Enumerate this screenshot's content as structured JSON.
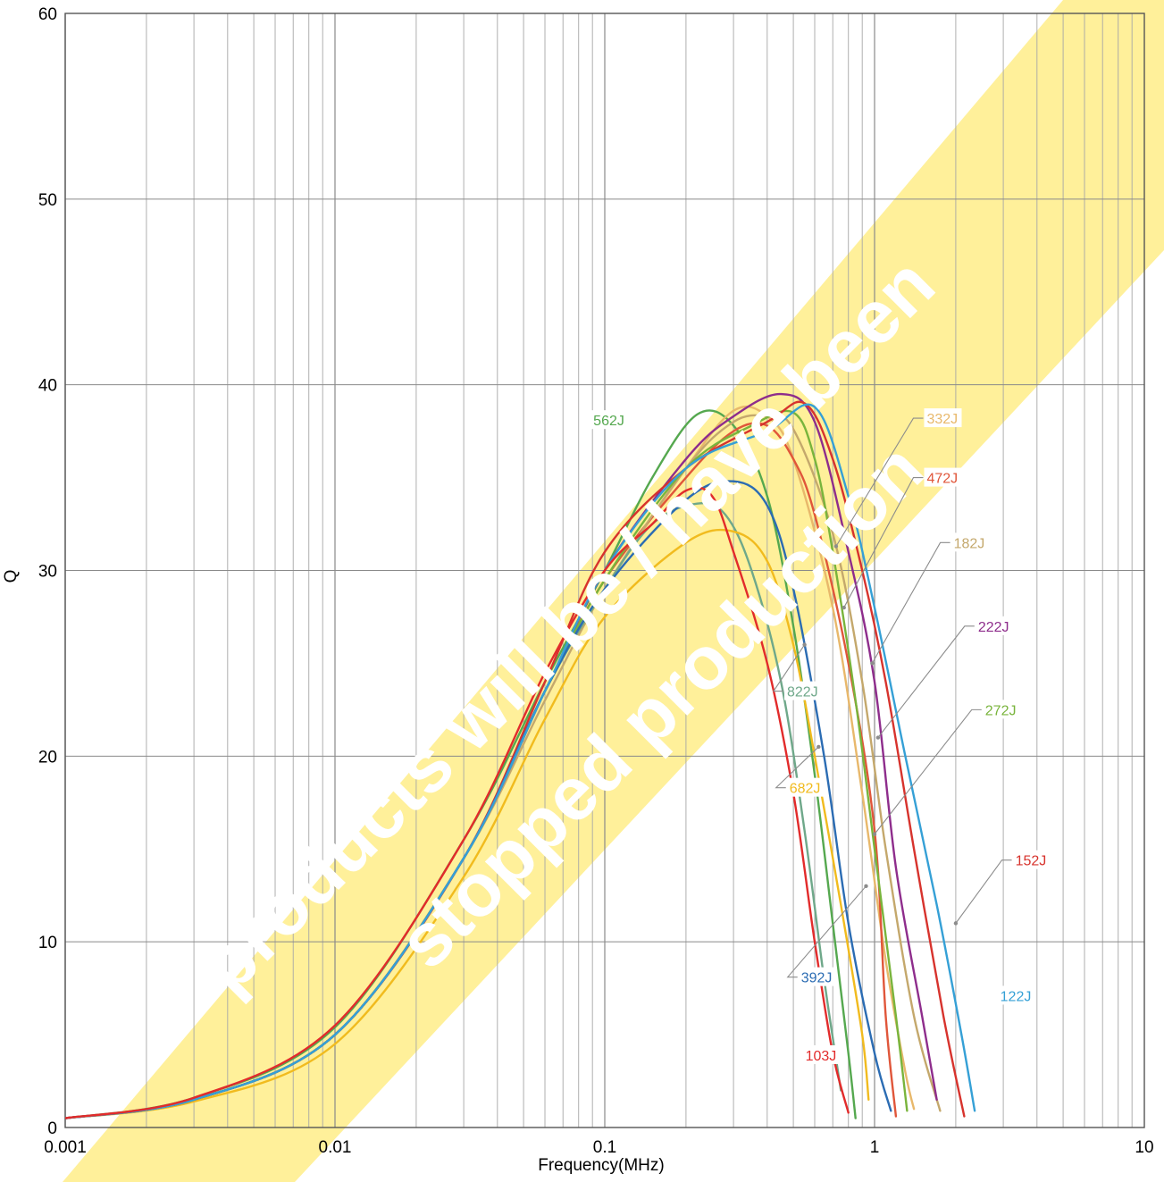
{
  "chart_data": {
    "type": "line",
    "title": "",
    "xlabel": "Frequency(MHz)",
    "ylabel": "Q",
    "xscale": "log",
    "xlim": [
      0.001,
      10
    ],
    "ylim": [
      0,
      60
    ],
    "x_ticks": [
      {
        "value": 0.001,
        "label": "0.001"
      },
      {
        "value": 0.01,
        "label": "0.01"
      },
      {
        "value": 0.1,
        "label": "0.1"
      },
      {
        "value": 1,
        "label": "1"
      },
      {
        "value": 10,
        "label": "10"
      }
    ],
    "y_ticks": [
      {
        "value": 0,
        "label": "0"
      },
      {
        "value": 10,
        "label": "10"
      },
      {
        "value": 20,
        "label": "20"
      },
      {
        "value": 30,
        "label": "30"
      },
      {
        "value": 40,
        "label": "40"
      },
      {
        "value": 50,
        "label": "50"
      },
      {
        "value": 60,
        "label": "60"
      }
    ],
    "grid": true,
    "legend": "none",
    "series": [
      {
        "name": "562J",
        "color": "#55a84f",
        "points": [
          [
            0.001,
            0.5
          ],
          [
            0.003,
            1.6
          ],
          [
            0.01,
            5.4
          ],
          [
            0.03,
            15.5
          ],
          [
            0.06,
            24
          ],
          [
            0.1,
            30
          ],
          [
            0.15,
            35
          ],
          [
            0.22,
            38.4
          ],
          [
            0.3,
            37.8
          ],
          [
            0.4,
            34
          ],
          [
            0.5,
            27
          ],
          [
            0.6,
            19
          ],
          [
            0.7,
            11
          ],
          [
            0.8,
            4
          ],
          [
            0.85,
            0.5
          ]
        ]
      },
      {
        "name": "332J",
        "color": "#e8b86b",
        "points": [
          [
            0.001,
            0.5
          ],
          [
            0.003,
            1.5
          ],
          [
            0.01,
            5
          ],
          [
            0.03,
            14.5
          ],
          [
            0.06,
            23.5
          ],
          [
            0.1,
            29
          ],
          [
            0.2,
            35.5
          ],
          [
            0.3,
            38.6
          ],
          [
            0.4,
            38.3
          ],
          [
            0.5,
            36
          ],
          [
            0.7,
            28
          ],
          [
            0.9,
            18
          ],
          [
            1.1,
            9
          ],
          [
            1.3,
            3
          ],
          [
            1.4,
            1
          ]
        ]
      },
      {
        "name": "472J",
        "color": "#e0563a",
        "points": [
          [
            0.001,
            0.5
          ],
          [
            0.003,
            1.5
          ],
          [
            0.01,
            5
          ],
          [
            0.03,
            14.5
          ],
          [
            0.06,
            23.5
          ],
          [
            0.1,
            29.5
          ],
          [
            0.2,
            35
          ],
          [
            0.3,
            37.5
          ],
          [
            0.4,
            37.8
          ],
          [
            0.5,
            36
          ],
          [
            0.6,
            33
          ],
          [
            0.8,
            25
          ],
          [
            1.0,
            16
          ],
          [
            1.1,
            6
          ],
          [
            1.2,
            0.6
          ]
        ]
      },
      {
        "name": "182J",
        "color": "#c4a86c",
        "points": [
          [
            0.001,
            0.5
          ],
          [
            0.003,
            1.5
          ],
          [
            0.01,
            5
          ],
          [
            0.03,
            14.5
          ],
          [
            0.06,
            23
          ],
          [
            0.1,
            29
          ],
          [
            0.2,
            35.5
          ],
          [
            0.3,
            38
          ],
          [
            0.4,
            38.3
          ],
          [
            0.5,
            37.6
          ],
          [
            0.7,
            32
          ],
          [
            0.9,
            24
          ],
          [
            1.1,
            15
          ],
          [
            1.4,
            6
          ],
          [
            1.75,
            0.9
          ]
        ]
      },
      {
        "name": "222J",
        "color": "#8e2d8c",
        "points": [
          [
            0.001,
            0.5
          ],
          [
            0.003,
            1.5
          ],
          [
            0.01,
            5
          ],
          [
            0.03,
            14.5
          ],
          [
            0.06,
            23.5
          ],
          [
            0.1,
            30
          ],
          [
            0.2,
            36
          ],
          [
            0.3,
            38.3
          ],
          [
            0.45,
            39.5
          ],
          [
            0.6,
            38
          ],
          [
            0.8,
            31
          ],
          [
            1.0,
            24
          ],
          [
            1.2,
            14
          ],
          [
            1.5,
            6
          ],
          [
            1.7,
            1.5
          ]
        ]
      },
      {
        "name": "822J",
        "color": "#6fa88a",
        "points": [
          [
            0.001,
            0.5
          ],
          [
            0.003,
            1.5
          ],
          [
            0.01,
            5
          ],
          [
            0.03,
            14.5
          ],
          [
            0.06,
            23.5
          ],
          [
            0.1,
            29
          ],
          [
            0.15,
            32.5
          ],
          [
            0.22,
            33.6
          ],
          [
            0.28,
            33
          ],
          [
            0.35,
            30
          ],
          [
            0.45,
            24
          ],
          [
            0.55,
            16
          ],
          [
            0.65,
            8
          ],
          [
            0.75,
            2
          ]
        ]
      },
      {
        "name": "272J",
        "color": "#79b43c",
        "points": [
          [
            0.001,
            0.5
          ],
          [
            0.003,
            1.5
          ],
          [
            0.01,
            5
          ],
          [
            0.03,
            14.5
          ],
          [
            0.06,
            23.5
          ],
          [
            0.1,
            29.5
          ],
          [
            0.2,
            35.5
          ],
          [
            0.35,
            37.8
          ],
          [
            0.5,
            38.5
          ],
          [
            0.6,
            36
          ],
          [
            0.7,
            31
          ],
          [
            0.85,
            23
          ],
          [
            1.0,
            15
          ],
          [
            1.2,
            6
          ],
          [
            1.32,
            0.9
          ]
        ]
      },
      {
        "name": "682J",
        "color": "#f1bb1e",
        "points": [
          [
            0.001,
            0.5
          ],
          [
            0.003,
            1.4
          ],
          [
            0.01,
            4.5
          ],
          [
            0.03,
            13.5
          ],
          [
            0.06,
            22
          ],
          [
            0.1,
            27.5
          ],
          [
            0.2,
            31.5
          ],
          [
            0.3,
            32.1
          ],
          [
            0.4,
            30.5
          ],
          [
            0.5,
            26
          ],
          [
            0.6,
            20
          ],
          [
            0.75,
            12
          ],
          [
            0.9,
            5
          ],
          [
            0.95,
            1.5
          ]
        ]
      },
      {
        "name": "152J",
        "color": "#d7332d",
        "points": [
          [
            0.001,
            0.5
          ],
          [
            0.003,
            1.5
          ],
          [
            0.01,
            5
          ],
          [
            0.03,
            14.5
          ],
          [
            0.06,
            24
          ],
          [
            0.1,
            31
          ],
          [
            0.2,
            35.5
          ],
          [
            0.4,
            38
          ],
          [
            0.55,
            39
          ],
          [
            0.7,
            36
          ],
          [
            0.9,
            30
          ],
          [
            1.1,
            24
          ],
          [
            1.4,
            15
          ],
          [
            1.8,
            6
          ],
          [
            2.15,
            0.6
          ]
        ]
      },
      {
        "name": "392J",
        "color": "#2b6cb3",
        "points": [
          [
            0.001,
            0.5
          ],
          [
            0.003,
            1.5
          ],
          [
            0.01,
            5
          ],
          [
            0.03,
            14.5
          ],
          [
            0.06,
            23.5
          ],
          [
            0.1,
            29
          ],
          [
            0.2,
            33.8
          ],
          [
            0.3,
            34.8
          ],
          [
            0.4,
            33.5
          ],
          [
            0.5,
            29
          ],
          [
            0.65,
            20
          ],
          [
            0.8,
            11
          ],
          [
            1.0,
            4
          ],
          [
            1.15,
            0.9
          ]
        ]
      },
      {
        "name": "122J",
        "color": "#35a0d6",
        "points": [
          [
            0.001,
            0.5
          ],
          [
            0.003,
            1.5
          ],
          [
            0.01,
            5
          ],
          [
            0.03,
            14.5
          ],
          [
            0.06,
            23.5
          ],
          [
            0.1,
            30
          ],
          [
            0.2,
            35.5
          ],
          [
            0.4,
            37.5
          ],
          [
            0.6,
            38.8
          ],
          [
            0.8,
            34
          ],
          [
            1.0,
            28
          ],
          [
            1.3,
            20
          ],
          [
            1.7,
            12
          ],
          [
            2.1,
            5
          ],
          [
            2.35,
            0.9
          ]
        ]
      },
      {
        "name": "103J",
        "color": "#e22b2b",
        "points": [
          [
            0.001,
            0.5
          ],
          [
            0.003,
            1.6
          ],
          [
            0.01,
            5.5
          ],
          [
            0.03,
            15.5
          ],
          [
            0.06,
            24.5
          ],
          [
            0.1,
            30
          ],
          [
            0.15,
            32.5
          ],
          [
            0.2,
            34.3
          ],
          [
            0.25,
            34
          ],
          [
            0.3,
            31
          ],
          [
            0.4,
            25
          ],
          [
            0.5,
            18
          ],
          [
            0.6,
            10
          ],
          [
            0.7,
            4
          ],
          [
            0.8,
            0.8
          ]
        ]
      }
    ],
    "annotations": [
      {
        "series": "562J",
        "text": "562J",
        "color": "#55a84f",
        "leader": false,
        "label_xy": [
          0.09,
          38.1
        ]
      },
      {
        "series": "332J",
        "text": "332J",
        "color": "#e8b86b",
        "leader": true,
        "label_xy": [
          1.55,
          38.2
        ],
        "target_xy": [
          0.72,
          31.3
        ]
      },
      {
        "series": "472J",
        "text": "472J",
        "color": "#e0563a",
        "leader": true,
        "label_xy": [
          1.55,
          35.0
        ],
        "target_xy": [
          0.77,
          28.0
        ]
      },
      {
        "series": "182J",
        "text": "182J",
        "color": "#c4a86c",
        "leader": true,
        "label_xy": [
          1.95,
          31.5
        ],
        "target_xy": [
          0.98,
          25.0
        ]
      },
      {
        "series": "222J",
        "text": "222J",
        "color": "#8e2d8c",
        "leader": true,
        "label_xy": [
          2.4,
          27.0
        ],
        "target_xy": [
          1.03,
          21.0
        ]
      },
      {
        "series": "822J",
        "text": "822J",
        "color": "#6fa88a",
        "leader": true,
        "label_xy": [
          0.47,
          23.5
        ],
        "target_xy": [
          0.55,
          26.0
        ]
      },
      {
        "series": "272J",
        "text": "272J",
        "color": "#79b43c",
        "leader": true,
        "label_xy": [
          2.55,
          22.5
        ],
        "target_xy": [
          1.0,
          15.8
        ]
      },
      {
        "series": "682J",
        "text": "682J",
        "color": "#f1bb1e",
        "leader": true,
        "label_xy": [
          0.48,
          18.3
        ],
        "target_xy": [
          0.62,
          20.5
        ]
      },
      {
        "series": "152J",
        "text": "152J",
        "color": "#d7332d",
        "leader": true,
        "label_xy": [
          3.3,
          14.4
        ],
        "target_xy": [
          2.0,
          11.0
        ]
      },
      {
        "series": "392J",
        "text": "392J",
        "color": "#2b6cb3",
        "leader": true,
        "label_xy": [
          0.53,
          8.1
        ],
        "target_xy": [
          0.93,
          13.0
        ]
      },
      {
        "series": "122J",
        "text": "122J",
        "color": "#35a0d6",
        "leader": false,
        "label_xy": [
          2.9,
          7.1
        ]
      },
      {
        "series": "103J",
        "text": "103J",
        "color": "#e22b2b",
        "leader": false,
        "label_xy": [
          0.55,
          3.9
        ]
      }
    ]
  },
  "watermark": {
    "color": "#fff09a",
    "lines": [
      "products will be / have been",
      "stopped production"
    ]
  }
}
